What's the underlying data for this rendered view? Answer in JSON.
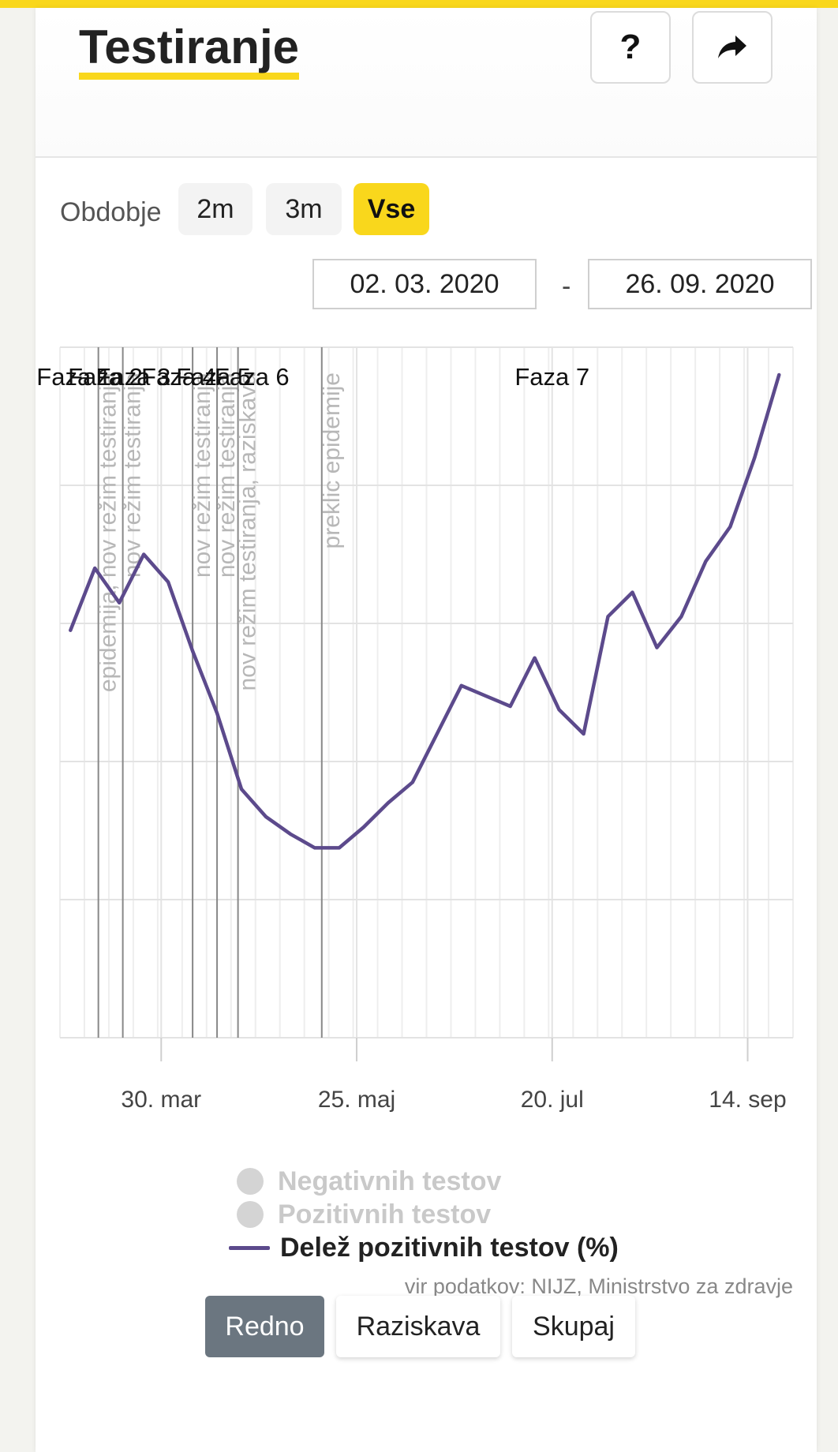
{
  "header": {
    "title": "Testiranje",
    "help_icon": "question-mark-icon",
    "help_glyph": "?",
    "share_icon": "share-arrow-icon"
  },
  "period": {
    "label": "Obdobje",
    "options": [
      "2m",
      "3m",
      "Vse"
    ],
    "selected": "Vse"
  },
  "date_range": {
    "from": "02. 03. 2020",
    "separator": "-",
    "to": "26. 09. 2020"
  },
  "colors": {
    "accent": "#f9d71c",
    "series_share_positive": "#5c4a8c",
    "legend_disabled": "#d4d4d4"
  },
  "legend": {
    "negative": "Negativnih testov",
    "positive": "Pozitivnih testov",
    "share": "Delež pozitivnih testov (%)"
  },
  "source": "vir podatkov: NIJZ, Ministrstvo za zdravje",
  "tabs": {
    "options": [
      "Redno",
      "Raziskava",
      "Skupaj"
    ],
    "selected": "Redno"
  },
  "chart_data": {
    "type": "line",
    "x_tick_labels": [
      "30. mar",
      "25. maj",
      "20. jul",
      "14. sep"
    ],
    "x_tick_dates": [
      "2020-03-30",
      "2020-05-25",
      "2020-07-20",
      "2020-09-14"
    ],
    "xlim": [
      "2020-03-01",
      "2020-09-27"
    ],
    "ylim": [
      0,
      10
    ],
    "grid": true,
    "phase_labels": [
      {
        "label": "Faza 1",
        "date": "2020-03-05"
      },
      {
        "label": "Faza 2",
        "date": "2020-03-14"
      },
      {
        "label": "Faza 3",
        "date": "2020-03-22"
      },
      {
        "label": "Faza 4",
        "date": "2020-04-04"
      },
      {
        "label": "Faza 5",
        "date": "2020-04-14"
      },
      {
        "label": "Faza 6",
        "date": "2020-04-25"
      },
      {
        "label": "Faza 7",
        "date": "2020-07-20"
      }
    ],
    "events": [
      {
        "label": "epidemija, nov režim testiranja",
        "date": "2020-03-12"
      },
      {
        "label": "nov režim testiranja",
        "date": "2020-03-19"
      },
      {
        "label": "nov režim testiranja",
        "date": "2020-04-08"
      },
      {
        "label": "nov režim testiranja",
        "date": "2020-04-15"
      },
      {
        "label": "nov režim testiranja, raziskava",
        "date": "2020-04-21"
      },
      {
        "label": "preklic epidemije",
        "date": "2020-05-15"
      }
    ],
    "series": [
      {
        "name": "Delež pozitivnih testov (%)",
        "dates": [
          "2020-03-04",
          "2020-03-11",
          "2020-03-18",
          "2020-03-25",
          "2020-04-01",
          "2020-04-08",
          "2020-04-15",
          "2020-04-22",
          "2020-04-29",
          "2020-05-06",
          "2020-05-13",
          "2020-05-20",
          "2020-05-27",
          "2020-06-03",
          "2020-06-10",
          "2020-06-17",
          "2020-06-24",
          "2020-07-01",
          "2020-07-08",
          "2020-07-15",
          "2020-07-22",
          "2020-07-29",
          "2020-08-05",
          "2020-08-12",
          "2020-08-19",
          "2020-08-26",
          "2020-09-02",
          "2020-09-09",
          "2020-09-16",
          "2020-09-23"
        ],
        "values": [
          5.9,
          6.8,
          6.3,
          7.0,
          6.6,
          5.6,
          4.7,
          3.6,
          3.2,
          2.95,
          2.75,
          2.75,
          3.05,
          3.4,
          3.7,
          4.4,
          5.1,
          4.95,
          4.8,
          5.5,
          4.75,
          4.4,
          6.1,
          6.45,
          5.65,
          6.1,
          6.9,
          7.4,
          8.4,
          9.6
        ]
      }
    ]
  }
}
